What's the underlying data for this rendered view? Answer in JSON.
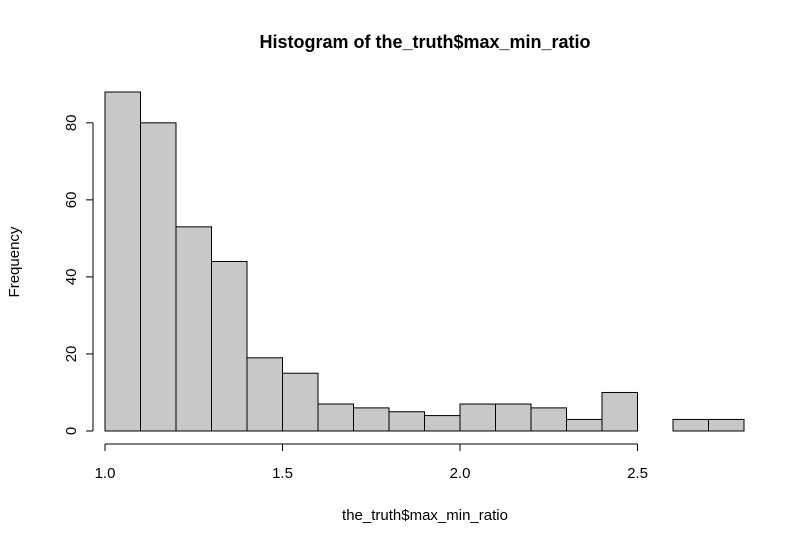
{
  "chart_data": {
    "type": "bar",
    "title": "Histogram of the_truth$max_min_ratio",
    "xlabel": "the_truth$max_min_ratio",
    "ylabel": "Frequency",
    "bin_edges": [
      1.0,
      1.1,
      1.2,
      1.3,
      1.4,
      1.5,
      1.6,
      1.7,
      1.8,
      1.9,
      2.0,
      2.1,
      2.2,
      2.3,
      2.4,
      2.5,
      2.6,
      2.7,
      2.8
    ],
    "values": [
      88,
      80,
      53,
      44,
      19,
      15,
      7,
      6,
      5,
      4,
      7,
      7,
      6,
      3,
      10,
      0,
      3,
      3
    ],
    "xlim": [
      1.0,
      2.8
    ],
    "ylim": [
      0,
      88
    ],
    "x_ticks": [
      "1.0",
      "1.5",
      "2.0",
      "2.5"
    ],
    "y_ticks": [
      "0",
      "20",
      "40",
      "60",
      "80"
    ],
    "grid": false
  }
}
